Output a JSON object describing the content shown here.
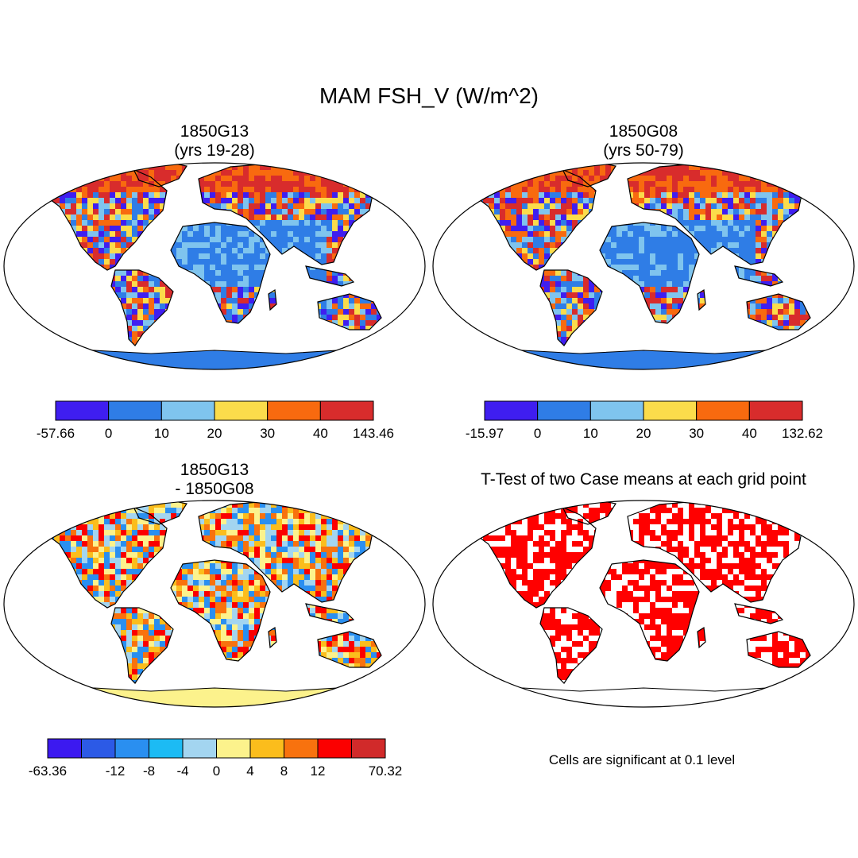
{
  "figure": {
    "title": "MAM FSH_V (W/m^2)"
  },
  "panels": [
    {
      "title_line1": "1850G13",
      "title_line2": "(yrs 19-28)",
      "colorbar": {
        "colors": [
          "#3f1ef0",
          "#2f7de6",
          "#7fc4ee",
          "#fbdc4b",
          "#f86a0f",
          "#d82c2c"
        ],
        "labels": [
          "-57.66",
          "0",
          "10",
          "20",
          "30",
          "40",
          "143.46"
        ]
      }
    },
    {
      "title_line1": "1850G08",
      "title_line2": "(yrs 50-79)",
      "colorbar": {
        "colors": [
          "#3f1ef0",
          "#2f7de6",
          "#7fc4ee",
          "#fbdc4b",
          "#f86a0f",
          "#d82c2c"
        ],
        "labels": [
          "-15.97",
          "0",
          "10",
          "20",
          "30",
          "40",
          "132.62"
        ]
      }
    },
    {
      "title_line1": "1850G13",
      "title_line2": "- 1850G08",
      "colorbar": {
        "colors": [
          "#3c19f0",
          "#2c5ae6",
          "#2a8ff0",
          "#1cbbf4",
          "#a3d5f0",
          "#fcf28c",
          "#fbbd1c",
          "#f8720e",
          "#fb0000",
          "#d12a2a"
        ],
        "labels": [
          "-63.36",
          "",
          "-12",
          "-8",
          "-4",
          "0",
          "4",
          "8",
          "12",
          "",
          "70.32"
        ]
      }
    },
    {
      "title_line1": "T-Test of two Case means at each grid point",
      "footnote": "Cells are significant at 0.1 level"
    }
  ],
  "map_colors": {
    "ocean": "#ffffff",
    "coast": "#000000",
    "significant": "#ff0000"
  }
}
